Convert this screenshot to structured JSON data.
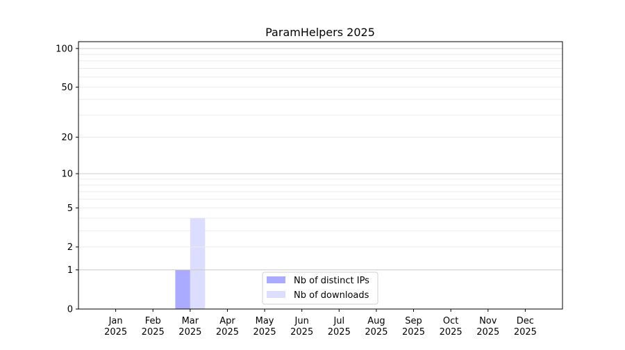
{
  "chart_data": {
    "type": "bar",
    "title": "ParamHelpers 2025",
    "xlabel": "",
    "ylabel": "",
    "yscale": "log10(1+y)",
    "ylim": [
      0,
      113
    ],
    "yticks": [
      0,
      1,
      2,
      5,
      10,
      20,
      50,
      100
    ],
    "minor_gridlines": [
      3,
      4,
      6,
      7,
      8,
      9,
      30,
      40,
      60,
      70,
      80,
      90
    ],
    "grid": true,
    "categories": [
      [
        "Jan",
        "2025"
      ],
      [
        "Feb",
        "2025"
      ],
      [
        "Mar",
        "2025"
      ],
      [
        "Apr",
        "2025"
      ],
      [
        "May",
        "2025"
      ],
      [
        "Jun",
        "2025"
      ],
      [
        "Jul",
        "2025"
      ],
      [
        "Aug",
        "2025"
      ],
      [
        "Sep",
        "2025"
      ],
      [
        "Oct",
        "2025"
      ],
      [
        "Nov",
        "2025"
      ],
      [
        "Dec",
        "2025"
      ]
    ],
    "series": [
      {
        "name": "Nb of distinct IPs",
        "color": "#aaaaff",
        "values": [
          0,
          0,
          1,
          0,
          0,
          0,
          0,
          0,
          0,
          0,
          0,
          0
        ]
      },
      {
        "name": "Nb of downloads",
        "color": "#ddddff",
        "values": [
          0,
          0,
          4,
          0,
          0,
          0,
          0,
          0,
          0,
          0,
          0,
          0
        ]
      }
    ],
    "legend_position": "bottom-center"
  }
}
